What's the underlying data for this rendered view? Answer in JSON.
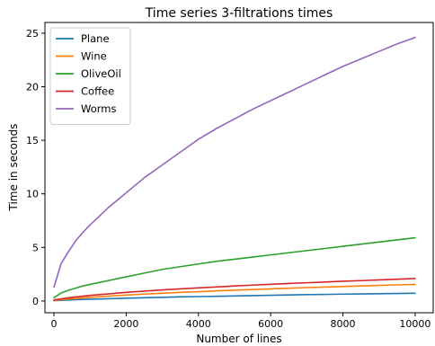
{
  "chart_data": {
    "type": "line",
    "title": "Time series 3-filtrations times",
    "xlabel": "Number of lines",
    "ylabel": "Time in seconds",
    "xlim": [
      -250,
      10500
    ],
    "ylim": [
      -1.1,
      26
    ],
    "xticks": [
      0,
      2000,
      4000,
      6000,
      8000,
      10000
    ],
    "yticks": [
      0,
      5,
      10,
      15,
      20,
      25
    ],
    "grid": false,
    "legend_position": "top-left",
    "x": [
      0,
      200,
      400,
      600,
      800,
      1000,
      1500,
      2000,
      2500,
      3000,
      3500,
      4000,
      4500,
      5000,
      5500,
      6000,
      6500,
      7000,
      7500,
      8000,
      8500,
      9000,
      9500,
      10000
    ],
    "series": [
      {
        "name": "Plane",
        "color": "#1f77b4",
        "values": [
          0.03,
          0.06,
          0.09,
          0.12,
          0.14,
          0.16,
          0.21,
          0.26,
          0.3,
          0.34,
          0.38,
          0.41,
          0.44,
          0.47,
          0.5,
          0.53,
          0.56,
          0.59,
          0.61,
          0.64,
          0.66,
          0.68,
          0.7,
          0.72
        ]
      },
      {
        "name": "Wine",
        "color": "#ff7f0e",
        "values": [
          0.05,
          0.12,
          0.18,
          0.24,
          0.29,
          0.34,
          0.45,
          0.55,
          0.64,
          0.72,
          0.8,
          0.87,
          0.94,
          1.01,
          1.07,
          1.13,
          1.19,
          1.25,
          1.3,
          1.35,
          1.4,
          1.45,
          1.5,
          1.55
        ]
      },
      {
        "name": "OliveOil",
        "color": "#2ca02c",
        "values": [
          0.3,
          0.75,
          1.0,
          1.2,
          1.4,
          1.55,
          1.9,
          2.25,
          2.6,
          2.95,
          3.2,
          3.45,
          3.7,
          3.9,
          4.1,
          4.3,
          4.5,
          4.7,
          4.9,
          5.1,
          5.3,
          5.5,
          5.7,
          5.9
        ]
      },
      {
        "name": "Coffee",
        "color": "#d62728",
        "values": [
          0.1,
          0.2,
          0.3,
          0.38,
          0.45,
          0.52,
          0.66,
          0.8,
          0.92,
          1.03,
          1.13,
          1.22,
          1.31,
          1.4,
          1.48,
          1.56,
          1.63,
          1.7,
          1.77,
          1.84,
          1.9,
          1.97,
          2.03,
          2.09
        ]
      },
      {
        "name": "Worms",
        "color": "#9467bd",
        "values": [
          1.3,
          3.5,
          4.6,
          5.6,
          6.4,
          7.1,
          8.7,
          10.1,
          11.5,
          12.7,
          13.9,
          15.1,
          16.1,
          17.0,
          17.9,
          18.7,
          19.5,
          20.3,
          21.1,
          21.9,
          22.6,
          23.3,
          24.0,
          24.6
        ]
      }
    ]
  }
}
